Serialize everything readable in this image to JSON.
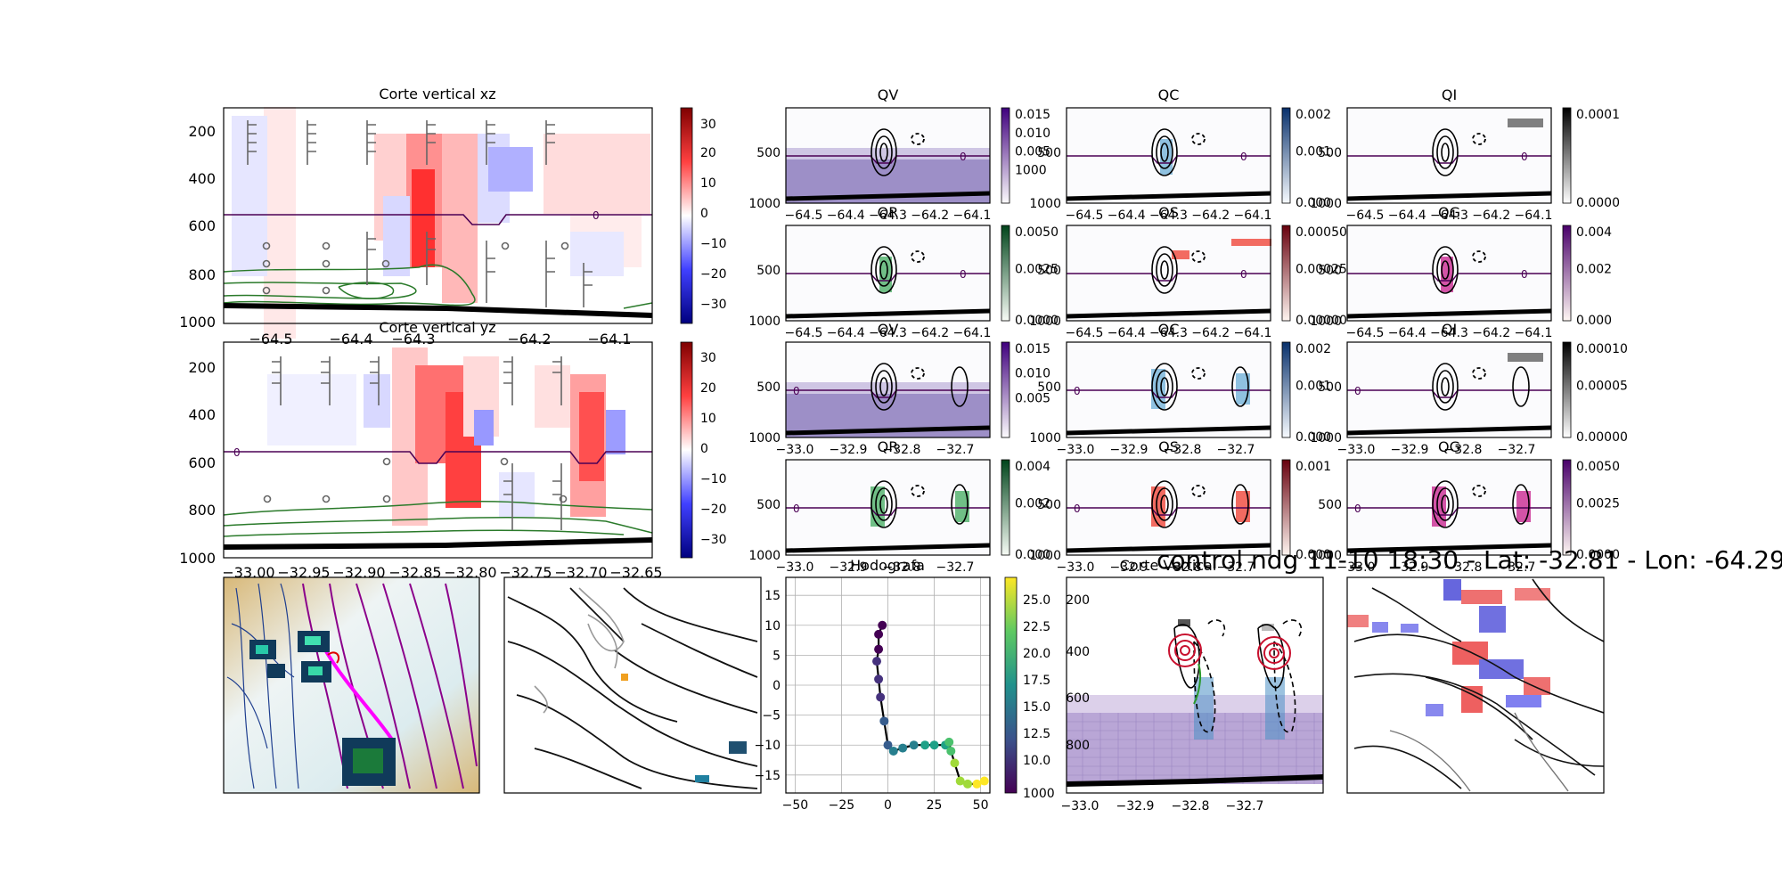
{
  "suptitle": "control ndg 11-10 18:30 - Lat: -32.81 - Lon: -64.29",
  "chart_data": [
    {
      "id": "xz",
      "type": "heatmap",
      "title": "Corte vertical xz",
      "x_ticks": [
        "−64.5",
        "−64.4",
        "−64.3",
        "−64.2",
        "−64.1"
      ],
      "y_ticks": [
        "200",
        "400",
        "600",
        "800",
        "1000"
      ],
      "colorbar": {
        "ticks": [
          "30",
          "20",
          "10",
          "0",
          "−10",
          "−20",
          "−30"
        ],
        "range": [
          -35,
          35
        ],
        "cmap": "bwr"
      },
      "freezing_level": {
        "label": "0",
        "pressure": 560
      }
    },
    {
      "id": "yz",
      "type": "heatmap",
      "title": "Corte vertical yz",
      "x_ticks": [
        "−33.00",
        "−32.95",
        "−32.90",
        "−32.85",
        "−32.80",
        "−32.75",
        "−32.70",
        "−32.65"
      ],
      "y_ticks": [
        "200",
        "400",
        "600",
        "800",
        "1000"
      ],
      "colorbar": {
        "ticks": [
          "30",
          "20",
          "10",
          "0",
          "−10",
          "−20",
          "−30"
        ],
        "range": [
          -35,
          35
        ],
        "cmap": "bwr"
      },
      "freezing_level": {
        "label": "0",
        "pressure": 560
      }
    },
    {
      "id": "small_xz",
      "type": "heatmap",
      "panels": [
        {
          "title": "QV",
          "cmap": "purple",
          "cbar": [
            "0.015",
            "0.010",
            "0.005",
            "1000"
          ],
          "cbar_bottom": ""
        },
        {
          "title": "QC",
          "cmap": "blue",
          "cbar": [
            "0.002",
            "0.001"
          ],
          "cbar_bottom": "0.000"
        },
        {
          "title": "QI",
          "cmap": "gray",
          "cbar": [
            "0.0001"
          ],
          "cbar_bottom": "0.0000"
        },
        {
          "title": "QR",
          "cmap": "green",
          "cbar": [
            "0.0050",
            "0.0025"
          ],
          "cbar_bottom": "0.0000"
        },
        {
          "title": "QS",
          "cmap": "red",
          "cbar": [
            "0.00050",
            "0.00025"
          ],
          "cbar_bottom": "0.00000"
        },
        {
          "title": "QG",
          "cmap": "magenta",
          "cbar": [
            "0.004",
            "0.002"
          ],
          "cbar_bottom": "0.000"
        }
      ],
      "x_ticks": [
        "−64.5",
        "−64.4",
        "−64.3",
        "−64.2",
        "−64.1"
      ],
      "y_ticks": [
        "500",
        "1000"
      ],
      "contour_label": "0"
    },
    {
      "id": "small_yz",
      "type": "heatmap",
      "panels": [
        {
          "title": "QV",
          "cmap": "purple",
          "cbar": [
            "0.015",
            "0.010",
            "0.005"
          ],
          "cbar_bottom": ""
        },
        {
          "title": "QC",
          "cmap": "blue",
          "cbar": [
            "0.002",
            "0.001"
          ],
          "cbar_bottom": "0.000"
        },
        {
          "title": "QI",
          "cmap": "gray",
          "cbar": [
            "0.00010",
            "0.00005"
          ],
          "cbar_bottom": "0.00000"
        },
        {
          "title": "QR",
          "cmap": "green",
          "cbar": [
            "0.004",
            "0.002"
          ],
          "cbar_bottom": "0.000"
        },
        {
          "title": "QS",
          "cmap": "red",
          "cbar": [
            "0.001"
          ],
          "cbar_bottom": "0.000"
        },
        {
          "title": "QG",
          "cmap": "magenta",
          "cbar": [
            "0.0050",
            "0.0025"
          ],
          "cbar_bottom": "0.0000"
        }
      ],
      "x_ticks": [
        "−33.0",
        "−32.9",
        "−32.8",
        "−32.7"
      ],
      "y_ticks": [
        "500",
        "1000"
      ],
      "contour_label": "0"
    },
    {
      "id": "hodograph",
      "type": "line",
      "title": "Hodografa",
      "x_ticks": [
        "−50",
        "−25",
        "0",
        "25",
        "50"
      ],
      "y_ticks": [
        "15",
        "10",
        "5",
        "0",
        "−5",
        "−10",
        "−15"
      ],
      "xlim": [
        -55,
        55
      ],
      "ylim": [
        -18,
        18
      ],
      "u": [
        -3,
        -5,
        -5,
        -6,
        -5,
        -4,
        -2,
        0,
        3,
        8,
        14,
        20,
        25,
        31,
        33,
        34,
        36,
        39,
        43,
        48,
        52
      ],
      "v": [
        10,
        8.5,
        6,
        4,
        1,
        -2,
        -6,
        -10,
        -11,
        -10.5,
        -10,
        -10,
        -10,
        -10,
        -9.5,
        -11,
        -13,
        -16,
        -16.5,
        -16.5,
        -16
      ],
      "colorbar": {
        "ticks": [
          "25.0",
          "22.5",
          "20.0",
          "17.5",
          "15.0",
          "12.5",
          "10.0",
          "1000"
        ],
        "cmap": "viridis"
      }
    },
    {
      "id": "corte_vertical",
      "type": "heatmap",
      "title": "Corte Vertical",
      "x_ticks": [
        "−33.0",
        "−32.9",
        "−32.8",
        "−32.7"
      ],
      "y_ticks": [
        "200",
        "400",
        "600",
        "800"
      ]
    }
  ]
}
